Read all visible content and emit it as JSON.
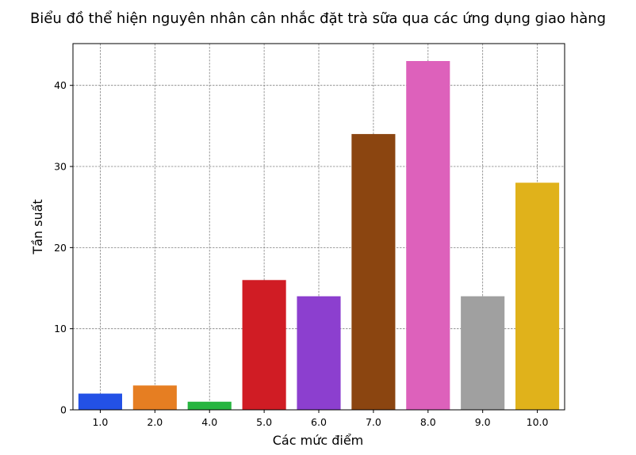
{
  "chart_data": {
    "type": "bar",
    "title": "Biểu đồ thể hiện nguyên nhân cân nhắc đặt trà sữa qua các ứng dụng giao hàng",
    "xlabel": "Các mức điểm",
    "ylabel": "Tần suất",
    "categories": [
      "1.0",
      "2.0",
      "4.0",
      "5.0",
      "6.0",
      "7.0",
      "8.0",
      "9.0",
      "10.0"
    ],
    "values": [
      2,
      3,
      1,
      16,
      14,
      34,
      43,
      14,
      28
    ],
    "colors": [
      "#2351e6",
      "#e67e22",
      "#27b540",
      "#d01c24",
      "#8c3fcf",
      "#8b4510",
      "#dd61bb",
      "#a0a0a0",
      "#e0b21b"
    ],
    "ylim": [
      0,
      45.15
    ],
    "yticks": [
      0,
      10,
      20,
      30,
      40
    ],
    "grid": true
  }
}
